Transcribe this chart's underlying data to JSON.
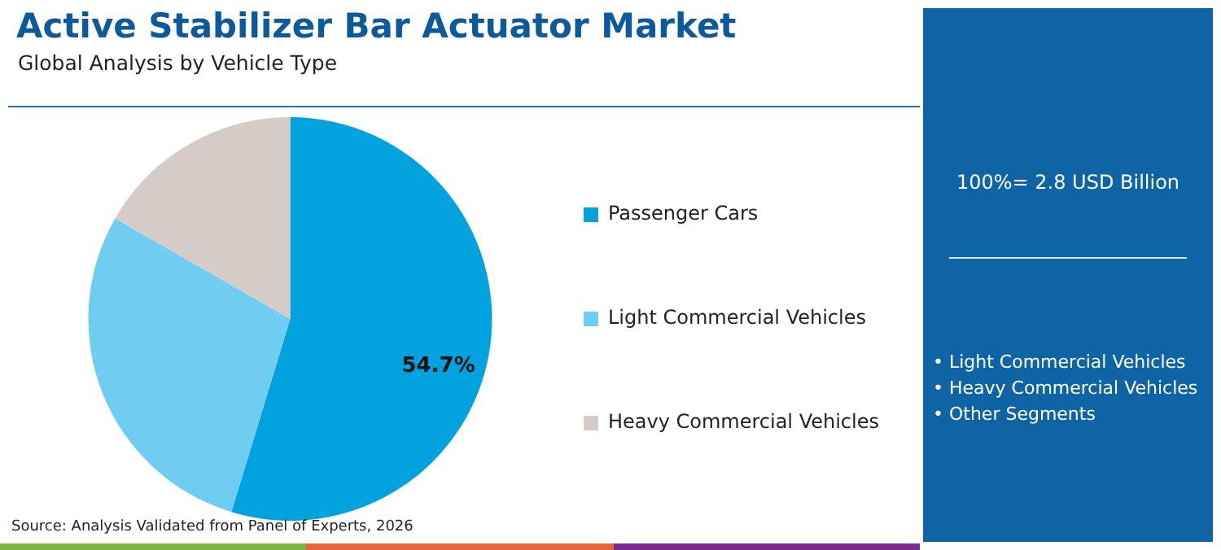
{
  "chart_data": {
    "type": "pie",
    "title": "Active Stabilizer Bar Actuator Market",
    "subtitle": "Global Analysis by Vehicle Type",
    "categories": [
      "Passenger Cars",
      "Light Commercial Vehicles",
      "Heavy Commercial Vehicles"
    ],
    "values": [
      54.7,
      28.6,
      16.7
    ],
    "colors": [
      "#00a3dd",
      "#6fcdf1",
      "#d5cbc7"
    ],
    "value_labels": [
      "54.7%",
      null,
      null
    ],
    "legend": "right",
    "annotations": [
      "100%= 2.8 USD Billion",
      "• Light Commercial Vehicles",
      "• Heavy Commercial Vehicles",
      "• Other Segments",
      "Source: Analysis Validated from Panel of Experts, 2026"
    ]
  }
}
